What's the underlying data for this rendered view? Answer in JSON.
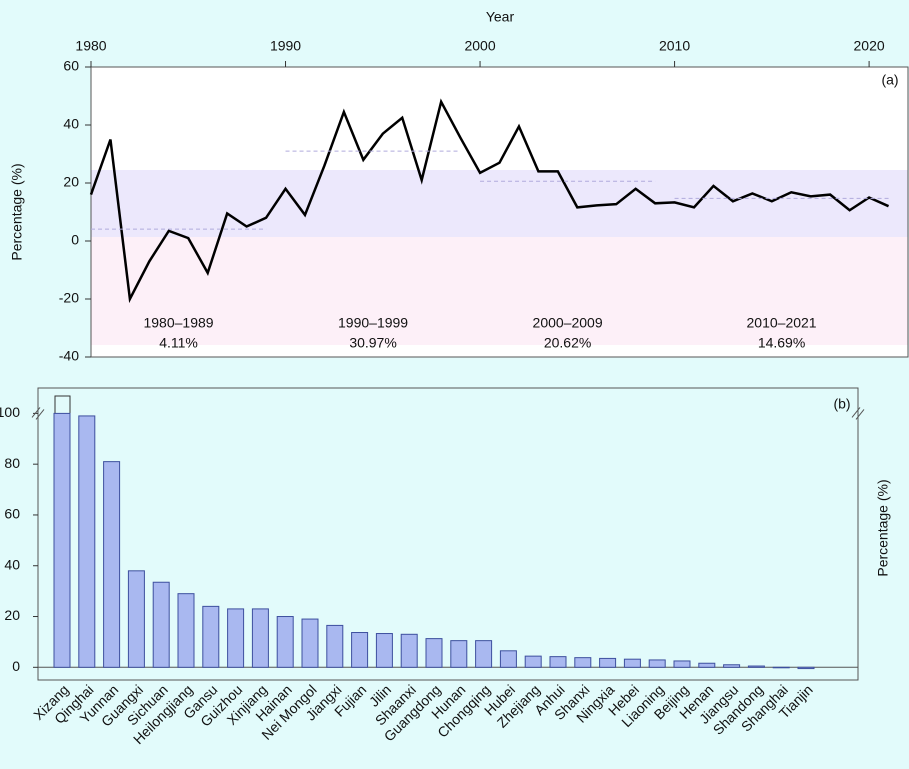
{
  "chart_data": [
    {
      "type": "line",
      "panel": "(a)",
      "x_label": "Year",
      "y_label": "Percentage (%)",
      "x": [
        1980,
        1981,
        1982,
        1983,
        1984,
        1985,
        1986,
        1987,
        1988,
        1989,
        1990,
        1991,
        1992,
        1993,
        1994,
        1995,
        1996,
        1997,
        1998,
        1999,
        2000,
        2001,
        2002,
        2003,
        2004,
        2005,
        2006,
        2007,
        2008,
        2009,
        2010,
        2011,
        2012,
        2013,
        2014,
        2015,
        2016,
        2017,
        2018,
        2019,
        2020,
        2021
      ],
      "values": [
        16,
        35,
        -20,
        -7,
        3.5,
        1,
        -11,
        9.5,
        5,
        8,
        18,
        9,
        26,
        44.5,
        28,
        37,
        42.5,
        21,
        48,
        35.5,
        23.5,
        27,
        39.5,
        24,
        24,
        11.6,
        12.3,
        12.7,
        18,
        13,
        13.3,
        11.6,
        19,
        13.7,
        16.4,
        13.7,
        16.8,
        15.4,
        16,
        10.6,
        15,
        12
      ],
      "color": "#000000",
      "xlim": [
        1980,
        2022
      ],
      "xticks": [
        1980,
        1990,
        2000,
        2010,
        2020
      ],
      "ylim": [
        -40,
        60
      ],
      "yticks": [
        -40,
        -20,
        0,
        20,
        40,
        60
      ],
      "periods": [
        "1980–1989",
        "1990–1999",
        "2000–2009",
        "2010–2021"
      ],
      "period_values": [
        4.11,
        30.97,
        20.62,
        14.69
      ],
      "period_value_labels": [
        "4.11%",
        "30.97%",
        "20.62%",
        "14.69%"
      ]
    },
    {
      "type": "bar",
      "panel": "(b)",
      "y_label": "Percentage (%)",
      "categories": [
        "Xizang",
        "Qinghai",
        "Yunnan",
        "Guangxi",
        "Sichuan",
        "Heilongjiang",
        "Gansu",
        "Guizhou",
        "Xinjiang",
        "Hainan",
        "Nei Mongol",
        "Jiangxi",
        "Fujian",
        "Jilin",
        "Shaanxi",
        "Guangdong",
        "Hunan",
        "Chongqing",
        "Hubei",
        "Zhejiang",
        "Anhui",
        "Shanxi",
        "Ningxia",
        "Hebei",
        "Liaoning",
        "Beijing",
        "Henan",
        "Jiangsu",
        "Shandong",
        "Shanghai",
        "Tianjin"
      ],
      "values": [
        100,
        99,
        81,
        38,
        33.5,
        29,
        24,
        23,
        23,
        20,
        19,
        16.5,
        13.7,
        13.3,
        13,
        11.3,
        10.5,
        10.5,
        6.5,
        4.4,
        4.2,
        3.8,
        3.5,
        3.2,
        2.9,
        2.5,
        1.6,
        1,
        0.5,
        0,
        -0.5
      ],
      "color": "#a9b8f0",
      "ylim": [
        -5,
        110
      ],
      "yticks": [
        0,
        20,
        40,
        60,
        80,
        100
      ]
    }
  ]
}
